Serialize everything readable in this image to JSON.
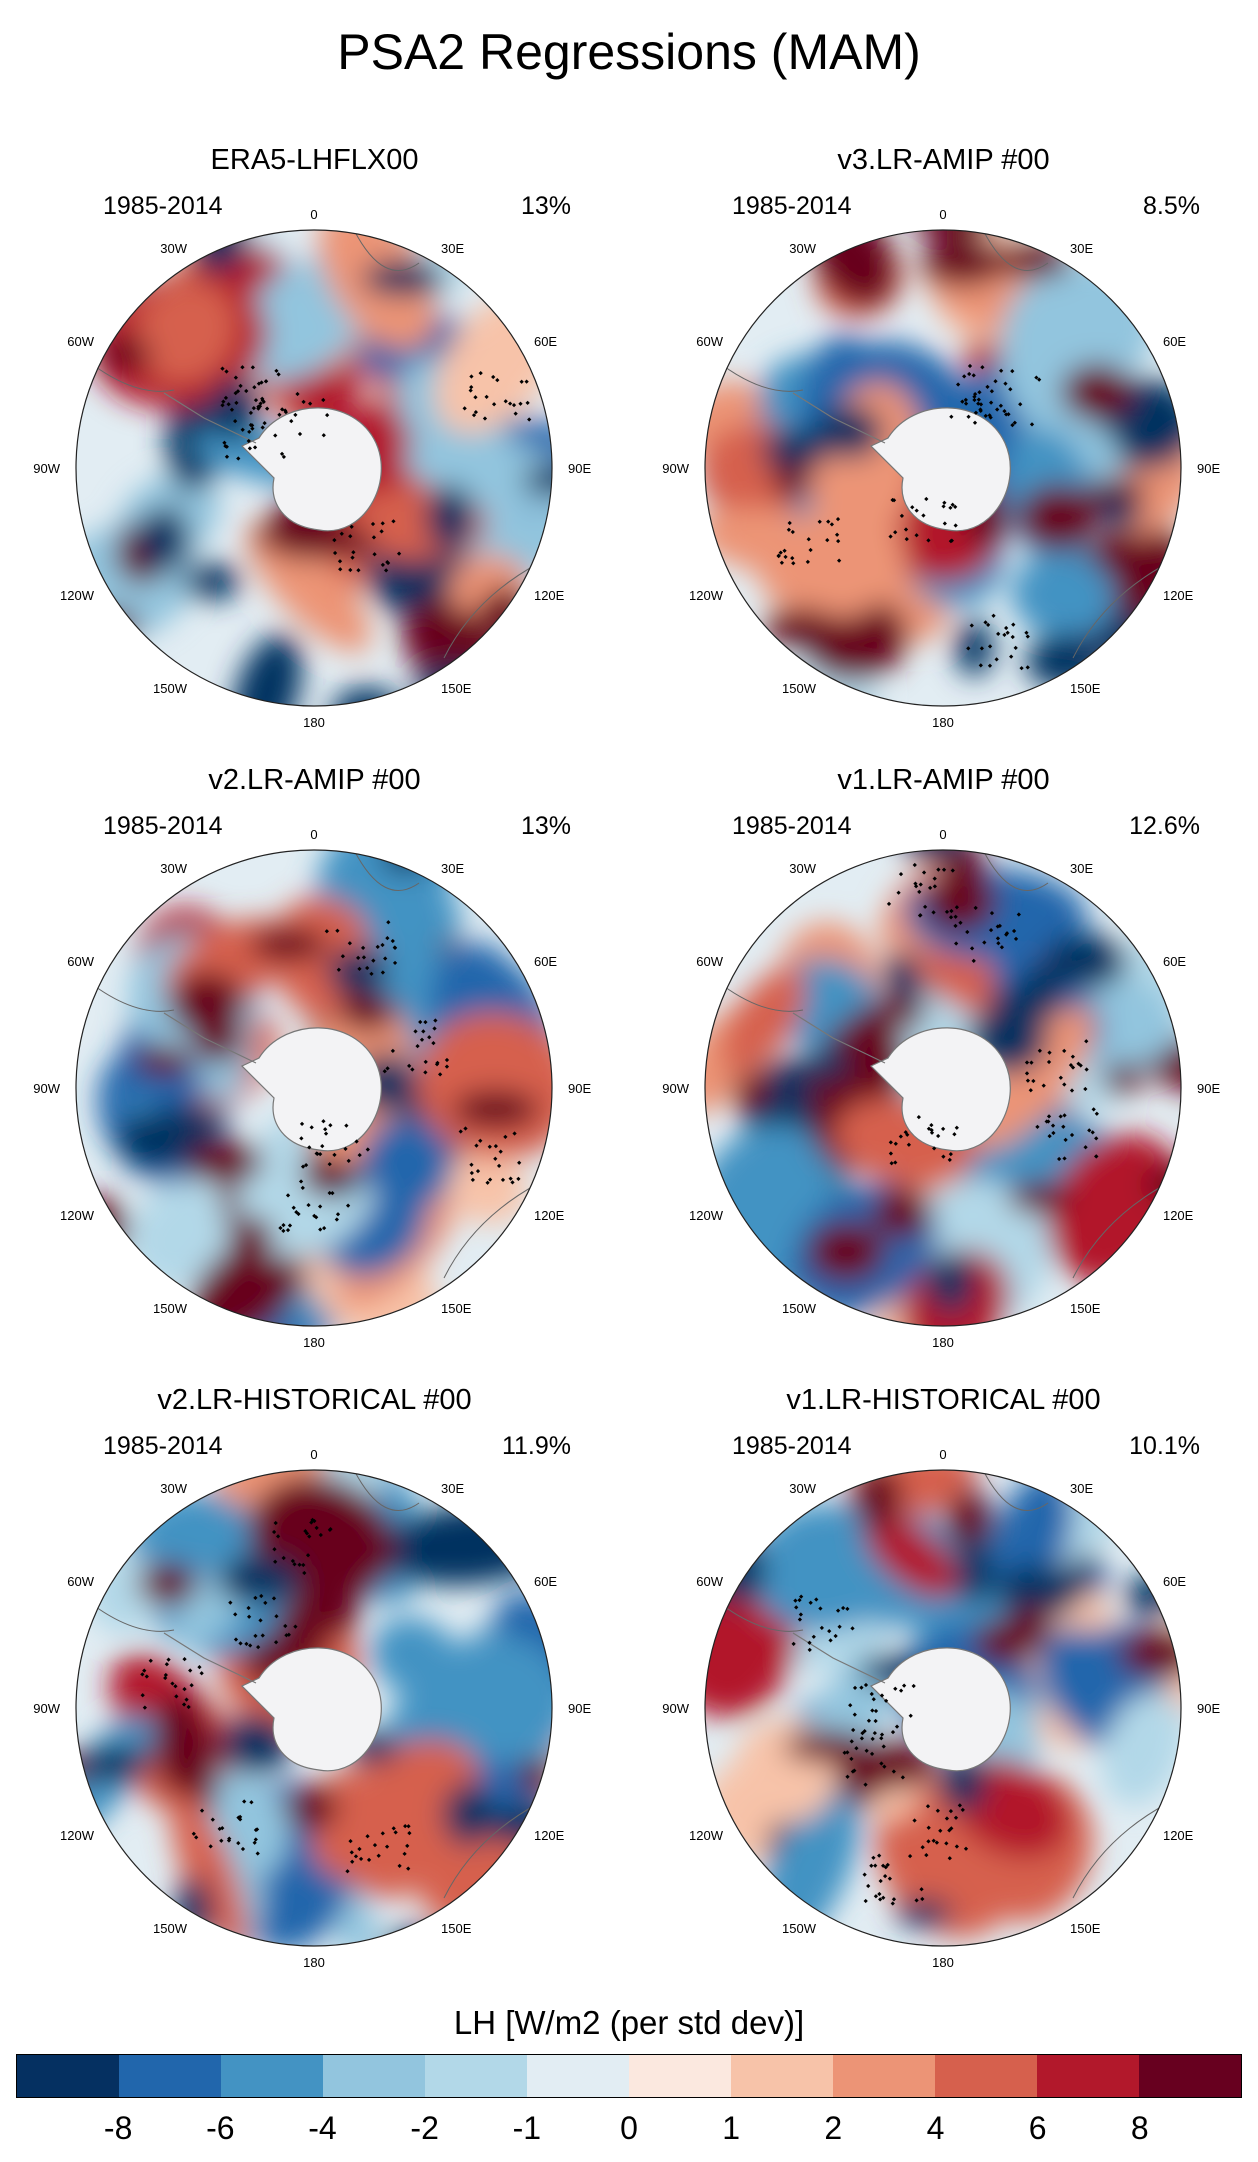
{
  "title": "PSA2 Regressions (MAM)",
  "panels": [
    {
      "title": "ERA5-LHFLX00",
      "years": "1985-2014",
      "pct": "13%"
    },
    {
      "title": "v3.LR-AMIP  #00",
      "years": "1985-2014",
      "pct": "8.5%"
    },
    {
      "title": "v2.LR-AMIP  #00",
      "years": "1985-2014",
      "pct": "13%"
    },
    {
      "title": "v1.LR-AMIP  #00",
      "years": "1985-2014",
      "pct": "12.6%"
    },
    {
      "title": "v2.LR-HISTORICAL  #00",
      "years": "1985-2014",
      "pct": "11.9%"
    },
    {
      "title": "v1.LR-HISTORICAL  #00",
      "years": "1985-2014",
      "pct": "10.1%"
    }
  ],
  "lon_labels": {
    "l0": "0",
    "l30e": "30E",
    "l60e": "60E",
    "l90e": "90E",
    "l120e": "120E",
    "l150e": "150E",
    "l180": "180",
    "l150w": "150W",
    "l120w": "120W",
    "l90w": "90W",
    "l60w": "60W",
    "l30w": "30W"
  },
  "colorbar": {
    "title": "LH [W/m2 (per std dev)]",
    "labels": [
      "-8",
      "-6",
      "-4",
      "-2",
      "-1",
      "0",
      "1",
      "2",
      "4",
      "6",
      "8"
    ],
    "colors": [
      "#053061",
      "#2166ac",
      "#4393c3",
      "#92c5de",
      "#b2d8e8",
      "#e2edf3",
      "#fbe8df",
      "#f7c3a9",
      "#ec9476",
      "#d6604d",
      "#b2182b",
      "#67001f"
    ]
  }
}
